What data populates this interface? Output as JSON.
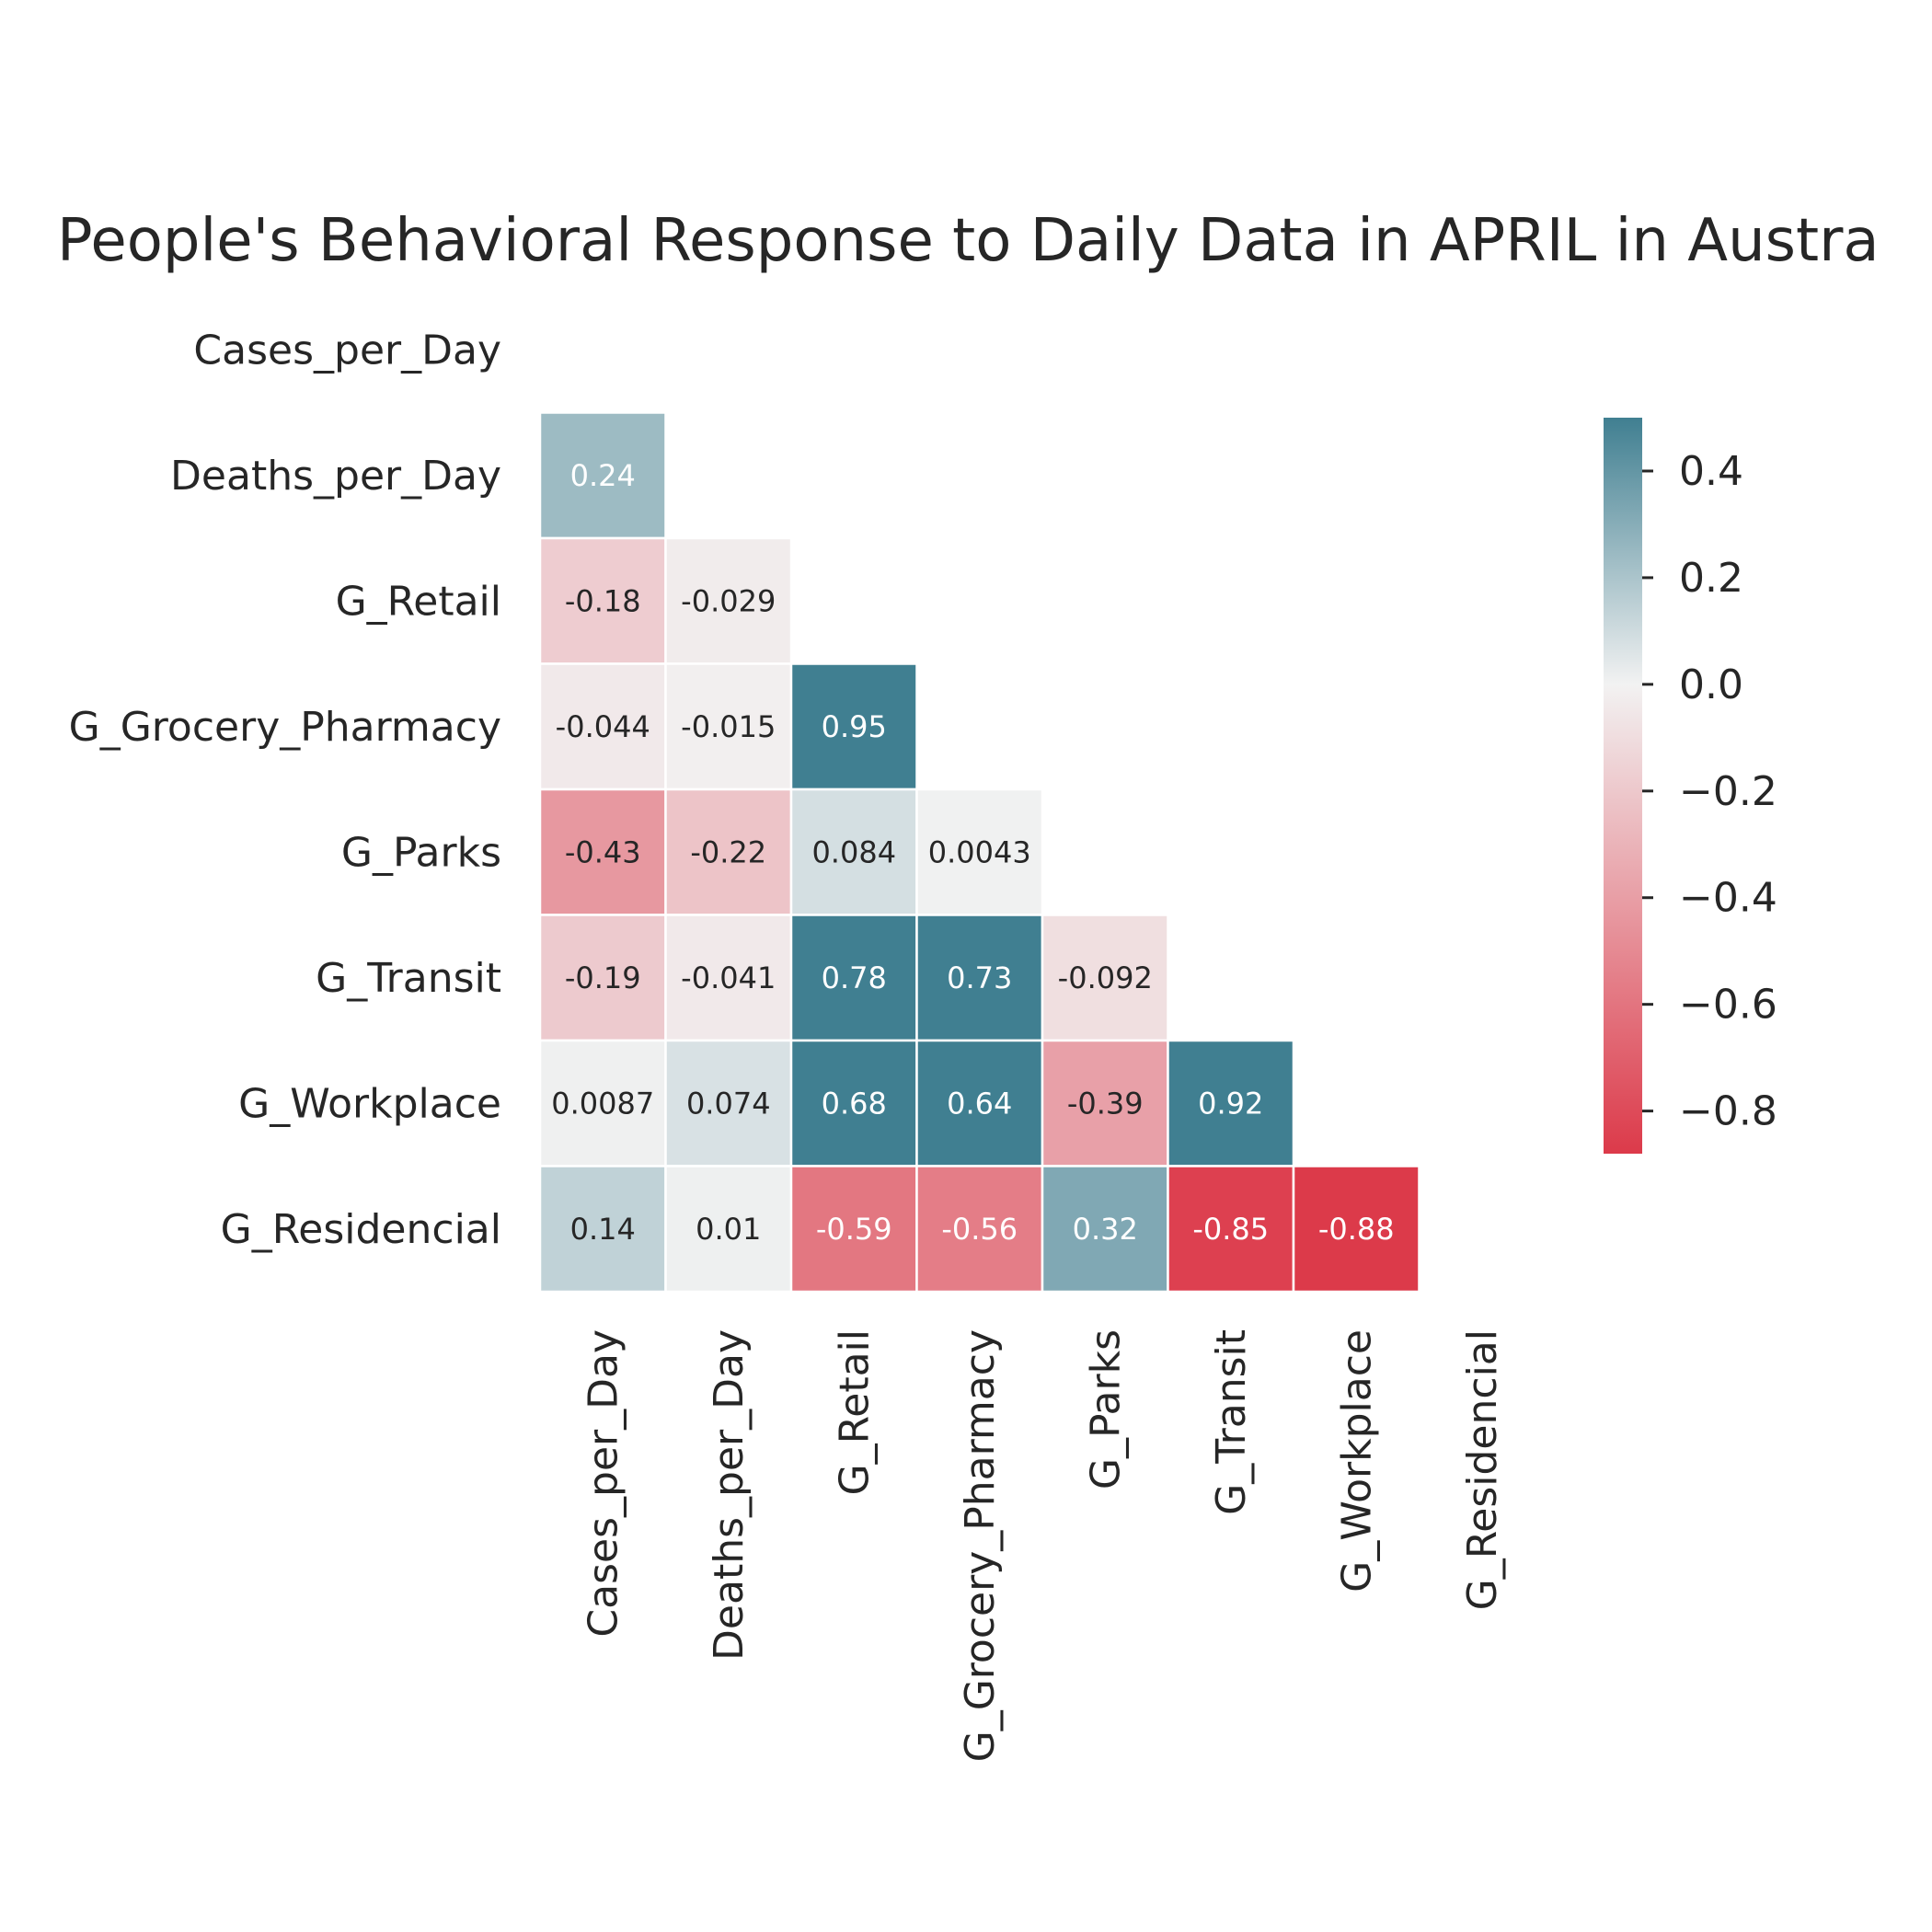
{
  "chart_data": {
    "type": "heatmap",
    "title": "People's Behavioral Response to Daily Data in APRIL in Austra",
    "variables": [
      "Cases_per_Day",
      "Deaths_per_Day",
      "G_Retail",
      "G_Grocery_Pharmacy",
      "G_Parks",
      "G_Transit",
      "G_Workplace",
      "G_Residencial"
    ],
    "mask": "upper-triangle-including-diagonal",
    "cells": [
      {
        "row": "Deaths_per_Day",
        "col": "Cases_per_Day",
        "value": 0.24,
        "label": "0.24"
      },
      {
        "row": "G_Retail",
        "col": "Cases_per_Day",
        "value": -0.18,
        "label": "-0.18"
      },
      {
        "row": "G_Retail",
        "col": "Deaths_per_Day",
        "value": -0.029,
        "label": "-0.029"
      },
      {
        "row": "G_Grocery_Pharmacy",
        "col": "Cases_per_Day",
        "value": -0.044,
        "label": "-0.044"
      },
      {
        "row": "G_Grocery_Pharmacy",
        "col": "Deaths_per_Day",
        "value": -0.015,
        "label": "-0.015"
      },
      {
        "row": "G_Grocery_Pharmacy",
        "col": "G_Retail",
        "value": 0.95,
        "label": "0.95"
      },
      {
        "row": "G_Parks",
        "col": "Cases_per_Day",
        "value": -0.43,
        "label": "-0.43"
      },
      {
        "row": "G_Parks",
        "col": "Deaths_per_Day",
        "value": -0.22,
        "label": "-0.22"
      },
      {
        "row": "G_Parks",
        "col": "G_Retail",
        "value": 0.084,
        "label": "0.084"
      },
      {
        "row": "G_Parks",
        "col": "G_Grocery_Pharmacy",
        "value": 0.0043,
        "label": "0.0043"
      },
      {
        "row": "G_Transit",
        "col": "Cases_per_Day",
        "value": -0.19,
        "label": "-0.19"
      },
      {
        "row": "G_Transit",
        "col": "Deaths_per_Day",
        "value": -0.041,
        "label": "-0.041"
      },
      {
        "row": "G_Transit",
        "col": "G_Retail",
        "value": 0.78,
        "label": "0.78"
      },
      {
        "row": "G_Transit",
        "col": "G_Grocery_Pharmacy",
        "value": 0.73,
        "label": "0.73"
      },
      {
        "row": "G_Transit",
        "col": "G_Parks",
        "value": -0.092,
        "label": "-0.092"
      },
      {
        "row": "G_Workplace",
        "col": "Cases_per_Day",
        "value": 0.0087,
        "label": "0.0087"
      },
      {
        "row": "G_Workplace",
        "col": "Deaths_per_Day",
        "value": 0.074,
        "label": "0.074"
      },
      {
        "row": "G_Workplace",
        "col": "G_Retail",
        "value": 0.68,
        "label": "0.68"
      },
      {
        "row": "G_Workplace",
        "col": "G_Grocery_Pharmacy",
        "value": 0.64,
        "label": "0.64"
      },
      {
        "row": "G_Workplace",
        "col": "G_Parks",
        "value": -0.39,
        "label": "-0.39"
      },
      {
        "row": "G_Workplace",
        "col": "G_Transit",
        "value": 0.92,
        "label": "0.92"
      },
      {
        "row": "G_Residencial",
        "col": "Cases_per_Day",
        "value": 0.14,
        "label": "0.14"
      },
      {
        "row": "G_Residencial",
        "col": "Deaths_per_Day",
        "value": 0.01,
        "label": "0.01"
      },
      {
        "row": "G_Residencial",
        "col": "G_Retail",
        "value": -0.59,
        "label": "-0.59"
      },
      {
        "row": "G_Residencial",
        "col": "G_Grocery_Pharmacy",
        "value": -0.56,
        "label": "-0.56"
      },
      {
        "row": "G_Residencial",
        "col": "G_Parks",
        "value": 0.32,
        "label": "0.32"
      },
      {
        "row": "G_Residencial",
        "col": "G_Transit",
        "value": -0.85,
        "label": "-0.85"
      },
      {
        "row": "G_Residencial",
        "col": "G_Workplace",
        "value": -0.88,
        "label": "-0.88"
      }
    ],
    "colorbar": {
      "range": [
        -0.88,
        0.5
      ],
      "ticks": [
        0.4,
        0.2,
        0.0,
        -0.2,
        -0.4,
        -0.6,
        -0.8
      ],
      "tick_labels": [
        "0.4",
        "0.2",
        "0.0",
        "−0.2",
        "−0.4",
        "−0.6",
        "−0.8"
      ],
      "color_low": "#dc3a4a",
      "color_mid": "#f2f2f2",
      "color_high": "#407f91"
    },
    "colors": {
      "text_dark": "#262626",
      "text_light": "#ffffff",
      "cell_border": "#ffffff"
    },
    "grid": false,
    "legend": "right (colorbar)"
  }
}
